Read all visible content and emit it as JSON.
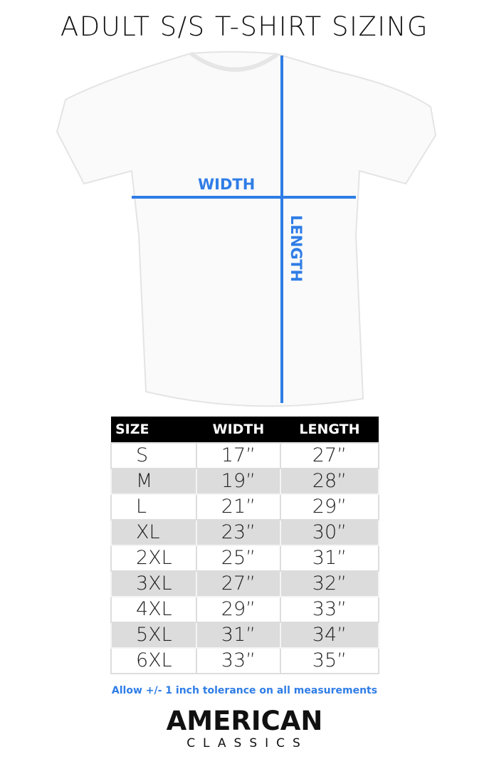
{
  "title": "ADULT S/S T-SHIRT SIZING",
  "diagram": {
    "width_label": "WIDTH",
    "length_label": "LENGTH",
    "line_color": "#2f7de6"
  },
  "table": {
    "headers": [
      "SIZE",
      "WIDTH",
      "LENGTH"
    ],
    "rows": [
      [
        "S",
        "17”",
        "27”"
      ],
      [
        "M",
        "19”",
        "28”"
      ],
      [
        "L",
        "21”",
        "29”"
      ],
      [
        "XL",
        "23”",
        "30”"
      ],
      [
        "2XL",
        "25”",
        "31”"
      ],
      [
        "3XL",
        "27”",
        "32”"
      ],
      [
        "4XL",
        "29”",
        "33”"
      ],
      [
        "5XL",
        "31”",
        "34”"
      ],
      [
        "6XL",
        "33”",
        "35”"
      ]
    ]
  },
  "note": "Allow +/- 1 inch tolerance on all measurements",
  "brand": {
    "line1": "AMERICAN",
    "line2": "CLASSICS"
  }
}
